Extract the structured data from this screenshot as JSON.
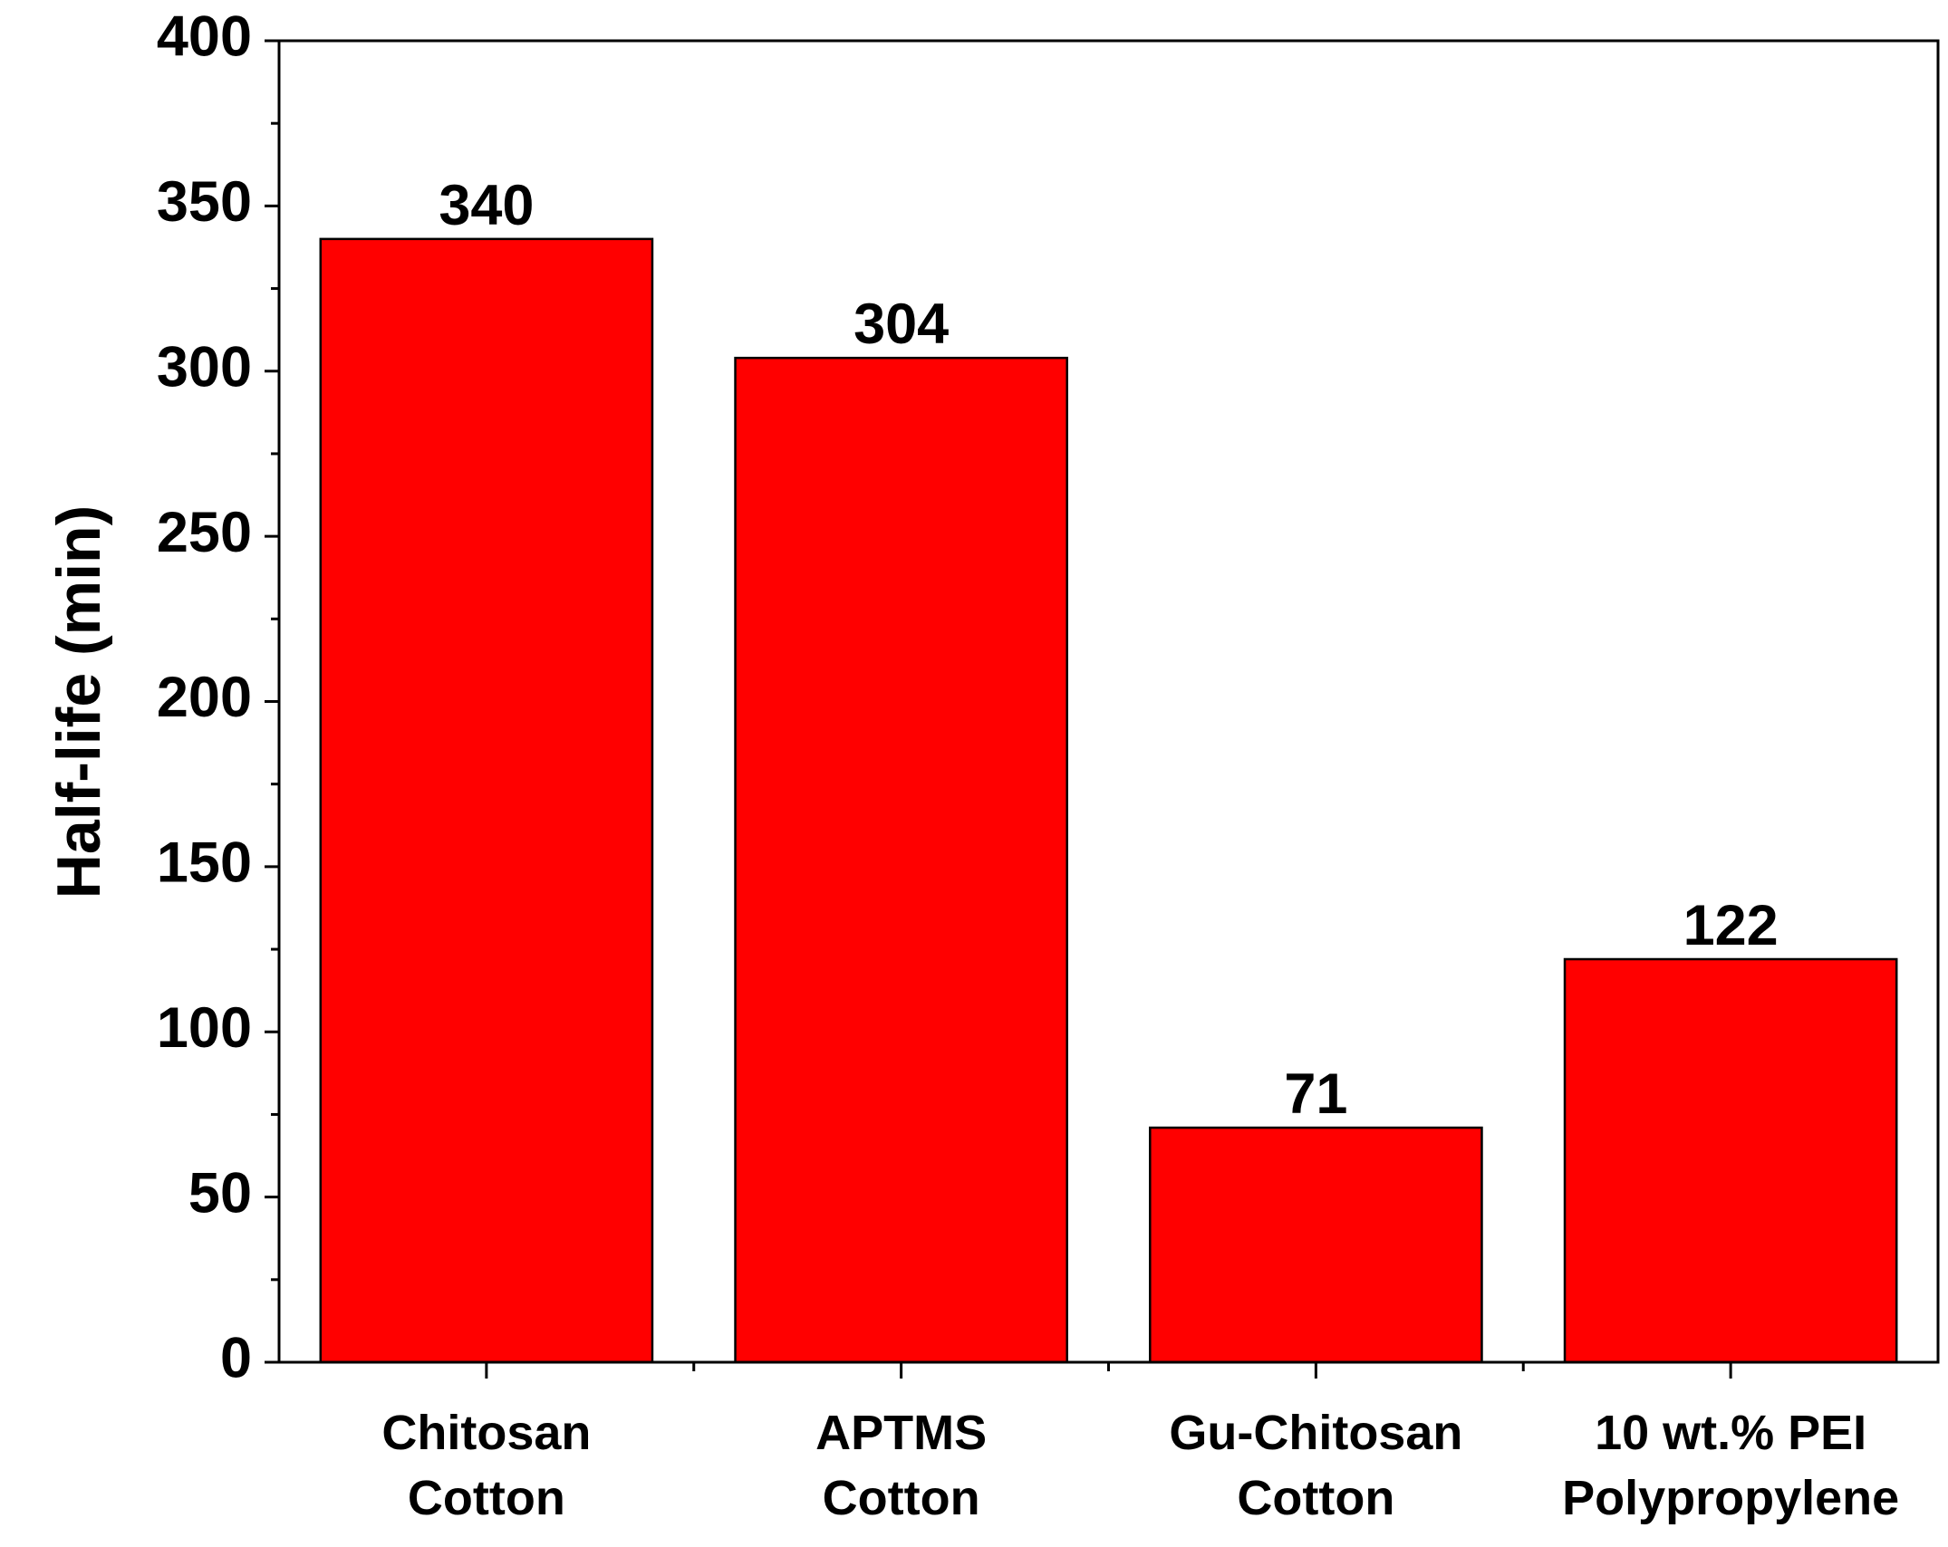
{
  "chart_data": {
    "type": "bar",
    "y_label": "Half-life (min)",
    "categories": [
      "Chitosan\nCotton",
      "APTMS\nCotton",
      "Gu-Chitosan\nCotton",
      "10 wt.% PEI\nPolypropylene"
    ],
    "values": [
      340,
      304,
      71,
      122
    ],
    "color": "#ff0000",
    "ylim": [
      0,
      400
    ],
    "yticks": [
      0,
      50,
      100,
      150,
      200,
      250,
      300,
      350,
      400
    ],
    "grid": false
  }
}
